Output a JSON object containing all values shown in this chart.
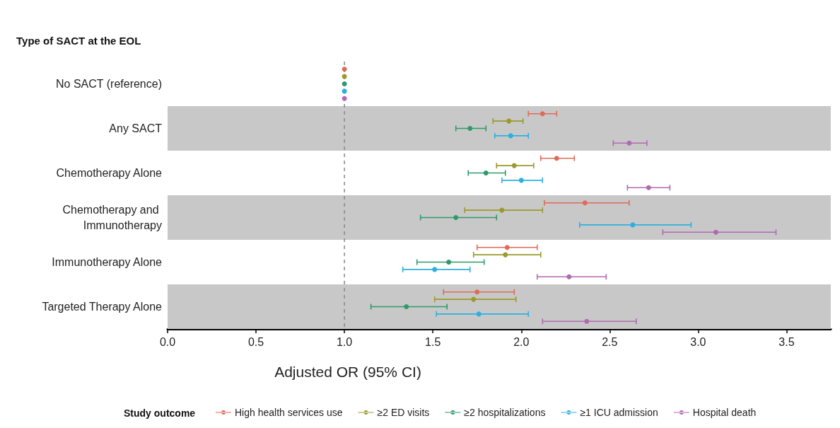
{
  "chart_data": {
    "type": "scatter",
    "orientation": "horizontal",
    "ylabel": "Type of SACT at the EOL",
    "xlabel": "Adjusted OR (95% CI)",
    "legend_title": "Study outcome",
    "categories": [
      "No SACT (reference)",
      "Any SACT",
      "Chemotherapy Alone",
      "Chemotherapy and Immunotherapy",
      "Immunotherapy Alone",
      "Targeted Therapy Alone"
    ],
    "series": [
      {
        "name": "High health services use",
        "color": "#e06a5a",
        "values": [
          1.0,
          2.12,
          2.2,
          2.36,
          1.92,
          1.75
        ],
        "errors": [
          null,
          [
            2.04,
            2.2
          ],
          [
            2.11,
            2.3
          ],
          [
            2.13,
            2.61
          ],
          [
            1.75,
            2.09
          ],
          [
            1.56,
            1.96
          ]
        ]
      },
      {
        "name": "≥2 ED visits",
        "color": "#9a9a2e",
        "values": [
          1.0,
          1.93,
          1.96,
          1.89,
          1.91,
          1.73
        ],
        "errors": [
          null,
          [
            1.84,
            2.01
          ],
          [
            1.86,
            2.07
          ],
          [
            1.68,
            2.12
          ],
          [
            1.73,
            2.11
          ],
          [
            1.51,
            1.97
          ]
        ]
      },
      {
        "name": "≥2 hospitalizations",
        "color": "#2e9a6a",
        "values": [
          1.0,
          1.71,
          1.8,
          1.63,
          1.59,
          1.35
        ],
        "errors": [
          null,
          [
            1.63,
            1.8
          ],
          [
            1.7,
            1.91
          ],
          [
            1.43,
            1.86
          ],
          [
            1.41,
            1.79
          ],
          [
            1.15,
            1.58
          ]
        ]
      },
      {
        "name": "≥1 ICU admission",
        "color": "#2cb0e0",
        "values": [
          1.0,
          1.94,
          2.0,
          2.63,
          1.51,
          1.76
        ],
        "errors": [
          null,
          [
            1.85,
            2.04
          ],
          [
            1.89,
            2.12
          ],
          [
            2.33,
            2.96
          ],
          [
            1.33,
            1.71
          ],
          [
            1.52,
            2.04
          ]
        ]
      },
      {
        "name": "Hospital death",
        "color": "#b06ab0",
        "values": [
          1.0,
          2.61,
          2.72,
          3.1,
          2.27,
          2.37
        ],
        "errors": [
          null,
          [
            2.52,
            2.71
          ],
          [
            2.6,
            2.84
          ],
          [
            2.8,
            3.44
          ],
          [
            2.09,
            2.48
          ],
          [
            2.12,
            2.65
          ]
        ]
      }
    ],
    "xlim": [
      0,
      3.75
    ],
    "xticks": [
      {
        "value": 0,
        "label": "0.0"
      },
      {
        "value": 0.5,
        "label": "0.5"
      },
      {
        "value": 1,
        "label": "1.0"
      },
      {
        "value": 1.5,
        "label": "1.5"
      },
      {
        "value": 2,
        "label": "2.0"
      },
      {
        "value": 2.5,
        "label": "2.5"
      },
      {
        "value": 3,
        "label": "3.0"
      },
      {
        "value": 3.5,
        "label": "3.5"
      }
    ],
    "ref_lines": [
      {
        "axis": "x",
        "value": 1,
        "color": "#888888",
        "line_style": "dashed"
      }
    ],
    "bands": [
      {
        "axis": "y",
        "from": "Any SACT",
        "to": "Any SACT",
        "color": "#c8c8c8"
      },
      {
        "axis": "y",
        "from": "Chemotherapy and Immunotherapy",
        "to": "Chemotherapy and Immunotherapy",
        "color": "#c8c8c8"
      },
      {
        "axis": "y",
        "from": "Targeted Therapy Alone",
        "to": "Targeted Therapy Alone",
        "color": "#c8c8c8"
      }
    ],
    "marker": "circle",
    "legend": "bottom",
    "grid": false
  }
}
